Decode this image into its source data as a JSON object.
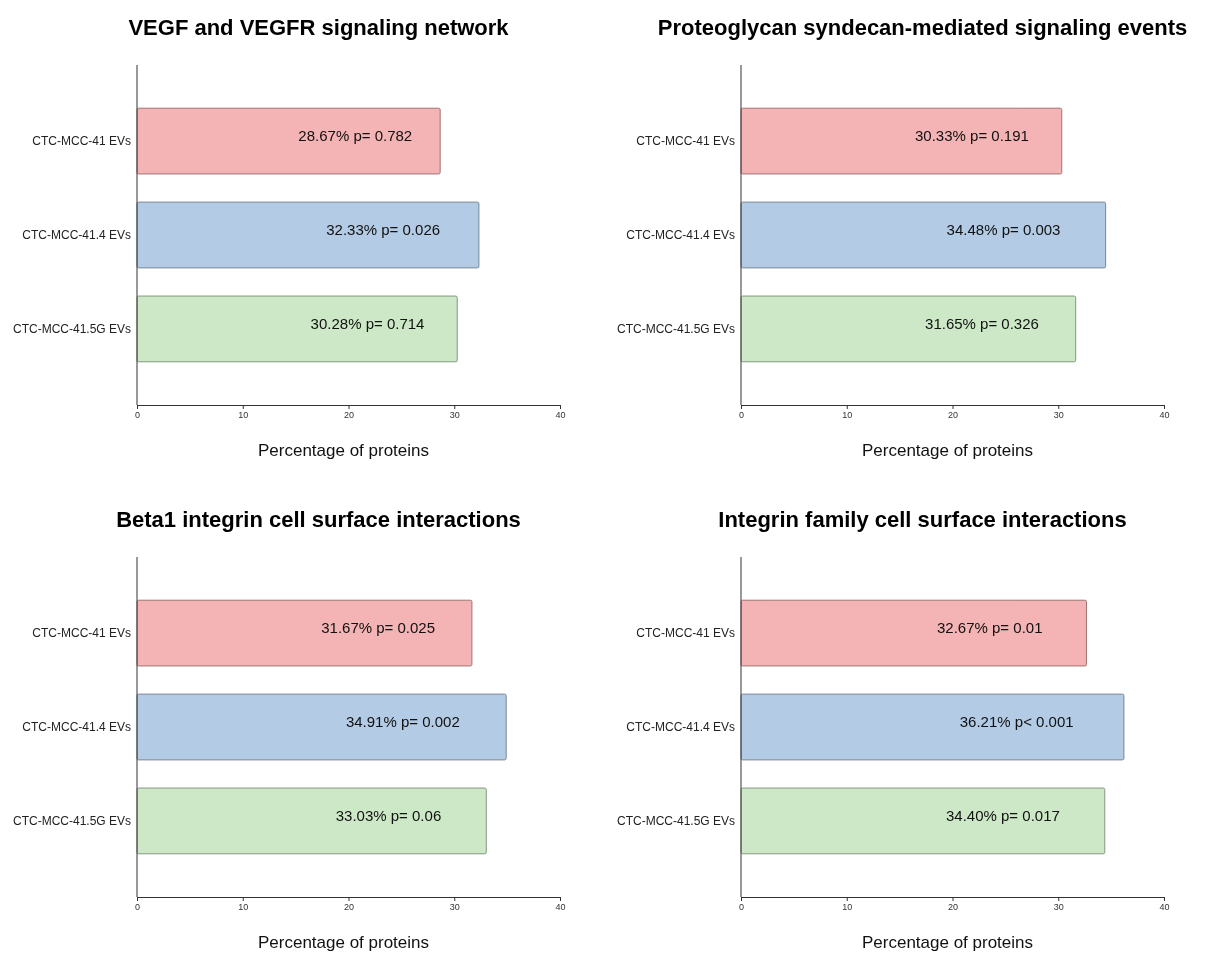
{
  "chart_data": [
    {
      "type": "bar",
      "orientation": "horizontal",
      "title": "VEGF and VEGFR signaling network",
      "xlabel": "Percentage of proteins",
      "categories": [
        "CTC-MCC-41 EVs",
        "CTC-MCC-41.4 EVs",
        "CTC-MCC-41.5G EVs"
      ],
      "values": [
        28.67,
        32.33,
        30.28
      ],
      "colors": [
        "#f4b3b4",
        "#b3cbe5",
        "#cce8c6"
      ],
      "value_labels": [
        "28.67% p= 0.782",
        "32.33% p= 0.026",
        "30.28% p= 0.714"
      ],
      "xlim": [
        0,
        40
      ],
      "xticks": [
        0,
        10,
        20,
        30,
        40
      ],
      "grid": false
    },
    {
      "type": "bar",
      "orientation": "horizontal",
      "title": "Proteoglycan syndecan-mediated signaling events",
      "xlabel": "Percentage of proteins",
      "categories": [
        "CTC-MCC-41 EVs",
        "CTC-MCC-41.4 EVs",
        "CTC-MCC-41.5G EVs"
      ],
      "values": [
        30.33,
        34.48,
        31.65
      ],
      "colors": [
        "#f4b3b4",
        "#b3cbe5",
        "#cce8c6"
      ],
      "value_labels": [
        "30.33% p= 0.191",
        "34.48% p= 0.003",
        "31.65% p= 0.326"
      ],
      "xlim": [
        0,
        40
      ],
      "xticks": [
        0,
        10,
        20,
        30,
        40
      ],
      "grid": false
    },
    {
      "type": "bar",
      "orientation": "horizontal",
      "title": "Beta1 integrin cell surface interactions",
      "xlabel": "Percentage of proteins",
      "categories": [
        "CTC-MCC-41 EVs",
        "CTC-MCC-41.4 EVs",
        "CTC-MCC-41.5G EVs"
      ],
      "values": [
        31.67,
        34.91,
        33.03
      ],
      "colors": [
        "#f4b3b4",
        "#b3cbe5",
        "#cce8c6"
      ],
      "value_labels": [
        "31.67% p= 0.025",
        "34.91% p= 0.002",
        "33.03% p= 0.06"
      ],
      "xlim": [
        0,
        40
      ],
      "xticks": [
        0,
        10,
        20,
        30,
        40
      ],
      "grid": false
    },
    {
      "type": "bar",
      "orientation": "horizontal",
      "title": "Integrin family cell surface interactions",
      "xlabel": "Percentage of proteins",
      "categories": [
        "CTC-MCC-41 EVs",
        "CTC-MCC-41.4 EVs",
        "CTC-MCC-41.5G EVs"
      ],
      "values": [
        32.67,
        36.21,
        34.4
      ],
      "colors": [
        "#f4b3b4",
        "#b3cbe5",
        "#cce8c6"
      ],
      "value_labels": [
        "32.67% p= 0.01",
        "36.21% p< 0.001",
        "34.40% p= 0.017"
      ],
      "xlim": [
        0,
        40
      ],
      "xticks": [
        0,
        10,
        20,
        30,
        40
      ],
      "grid": false
    }
  ]
}
